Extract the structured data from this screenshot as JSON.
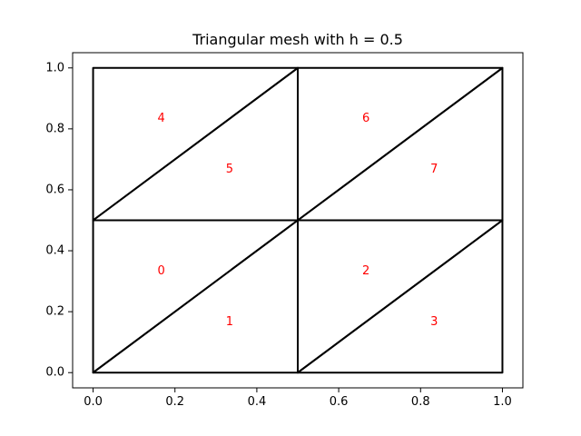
{
  "chart_data": {
    "type": "mesh",
    "title": "Triangular mesh with h = 0.5",
    "xlabel": "",
    "ylabel": "",
    "xlim": [
      -0.05,
      1.05
    ],
    "ylim": [
      -0.05,
      1.05
    ],
    "grid": false,
    "xticks": [
      0.0,
      0.2,
      0.4,
      0.6,
      0.8,
      1.0
    ],
    "xtick_labels": [
      "0.0",
      "0.2",
      "0.4",
      "0.6",
      "0.8",
      "1.0"
    ],
    "yticks": [
      0.0,
      0.2,
      0.4,
      0.6,
      0.8,
      1.0
    ],
    "ytick_labels": [
      "0.0",
      "0.2",
      "0.4",
      "0.6",
      "0.8",
      "1.0"
    ],
    "edge_color": "#000000",
    "label_color": "#ff0000",
    "triangles": [
      {
        "label": "0",
        "vertices": [
          [
            0.0,
            0.0
          ],
          [
            0.5,
            0.5
          ],
          [
            0.0,
            0.5
          ]
        ]
      },
      {
        "label": "1",
        "vertices": [
          [
            0.0,
            0.0
          ],
          [
            0.5,
            0.0
          ],
          [
            0.5,
            0.5
          ]
        ]
      },
      {
        "label": "2",
        "vertices": [
          [
            0.5,
            0.0
          ],
          [
            1.0,
            0.5
          ],
          [
            0.5,
            0.5
          ]
        ]
      },
      {
        "label": "3",
        "vertices": [
          [
            0.5,
            0.0
          ],
          [
            1.0,
            0.0
          ],
          [
            1.0,
            0.5
          ]
        ]
      },
      {
        "label": "4",
        "vertices": [
          [
            0.0,
            0.5
          ],
          [
            0.5,
            1.0
          ],
          [
            0.0,
            1.0
          ]
        ]
      },
      {
        "label": "5",
        "vertices": [
          [
            0.0,
            0.5
          ],
          [
            0.5,
            0.5
          ],
          [
            0.5,
            1.0
          ]
        ]
      },
      {
        "label": "6",
        "vertices": [
          [
            0.5,
            0.5
          ],
          [
            1.0,
            1.0
          ],
          [
            0.5,
            1.0
          ]
        ]
      },
      {
        "label": "7",
        "vertices": [
          [
            0.5,
            0.5
          ],
          [
            1.0,
            0.5
          ],
          [
            1.0,
            1.0
          ]
        ]
      }
    ]
  }
}
